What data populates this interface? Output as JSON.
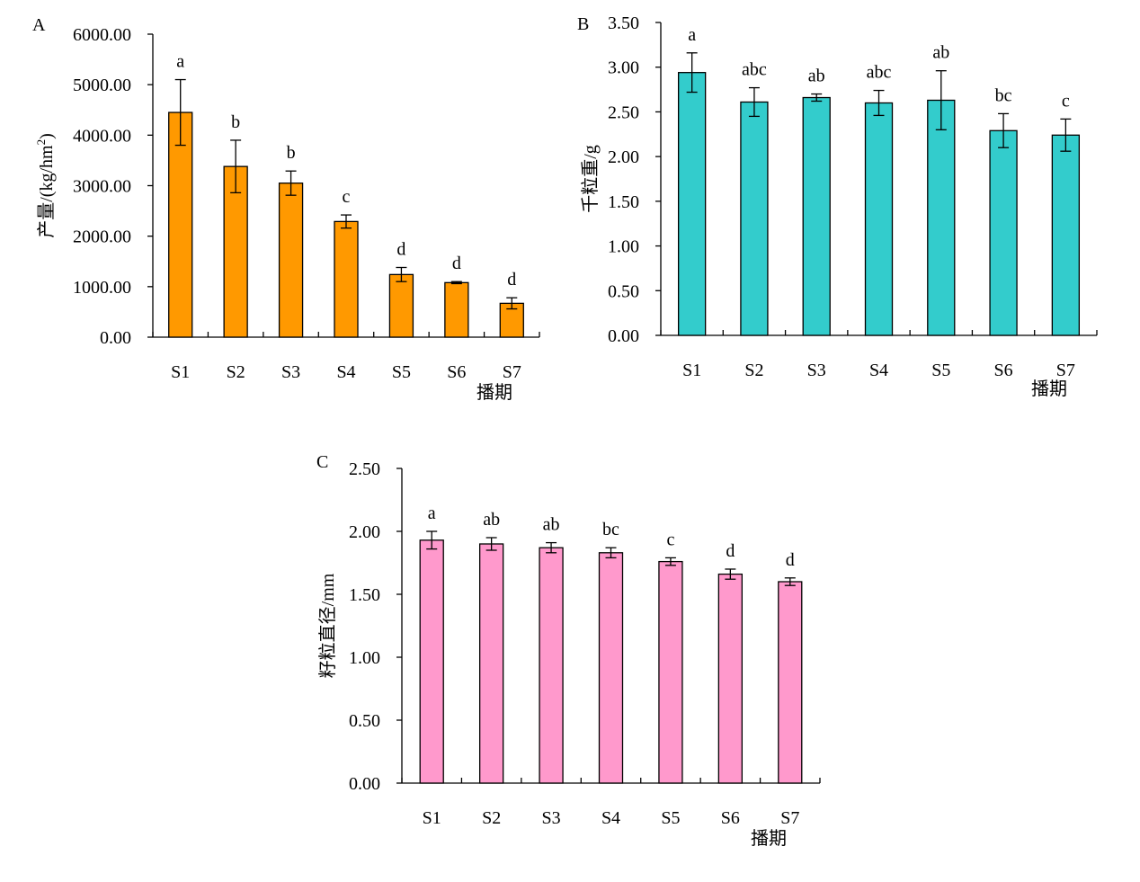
{
  "chart_data": [
    {
      "type": "bar",
      "panel": "A",
      "categories": [
        "S1",
        "S2",
        "S3",
        "S4",
        "S5",
        "S6",
        "S7"
      ],
      "values": [
        4450,
        3380,
        3050,
        2290,
        1240,
        1080,
        670
      ],
      "errors": [
        650,
        520,
        240,
        130,
        140,
        20,
        110
      ],
      "significance": [
        "a",
        "b",
        "b",
        "c",
        "d",
        "d",
        "d"
      ],
      "ylabel": "产量/(kg/hm",
      "ylabel_sup": "2",
      "ylabel_end": ")",
      "xlabel": "播期",
      "ylim": [
        0,
        6000
      ],
      "yticks": [
        "0.00",
        "1000.00",
        "2000.00",
        "3000.00",
        "4000.00",
        "5000.00",
        "6000.00"
      ],
      "color": "#FF9900"
    },
    {
      "type": "bar",
      "panel": "B",
      "categories": [
        "S1",
        "S2",
        "S3",
        "S4",
        "S5",
        "S6",
        "S7"
      ],
      "values": [
        2.94,
        2.61,
        2.66,
        2.6,
        2.63,
        2.29,
        2.24
      ],
      "errors": [
        0.22,
        0.16,
        0.04,
        0.14,
        0.33,
        0.19,
        0.18
      ],
      "significance": [
        "a",
        "abc",
        "ab",
        "abc",
        "ab",
        "bc",
        "c"
      ],
      "ylabel": "千粒重/g",
      "xlabel": "播期",
      "ylim": [
        0,
        3.5
      ],
      "yticks": [
        "0.00",
        "0.50",
        "1.00",
        "1.50",
        "2.00",
        "2.50",
        "3.00",
        "3.50"
      ],
      "color": "#33CCCC"
    },
    {
      "type": "bar",
      "panel": "C",
      "categories": [
        "S1",
        "S2",
        "S3",
        "S4",
        "S5",
        "S6",
        "S7"
      ],
      "values": [
        1.93,
        1.9,
        1.87,
        1.83,
        1.76,
        1.66,
        1.6
      ],
      "errors": [
        0.07,
        0.05,
        0.04,
        0.04,
        0.03,
        0.04,
        0.03
      ],
      "significance": [
        "a",
        "ab",
        "ab",
        "bc",
        "c",
        "d",
        "d"
      ],
      "ylabel": "籽粒直径/mm",
      "xlabel": "播期",
      "ylim": [
        0,
        2.5
      ],
      "yticks": [
        "0.00",
        "0.50",
        "1.00",
        "1.50",
        "2.00",
        "2.50"
      ],
      "color": "#FF99CC"
    }
  ]
}
